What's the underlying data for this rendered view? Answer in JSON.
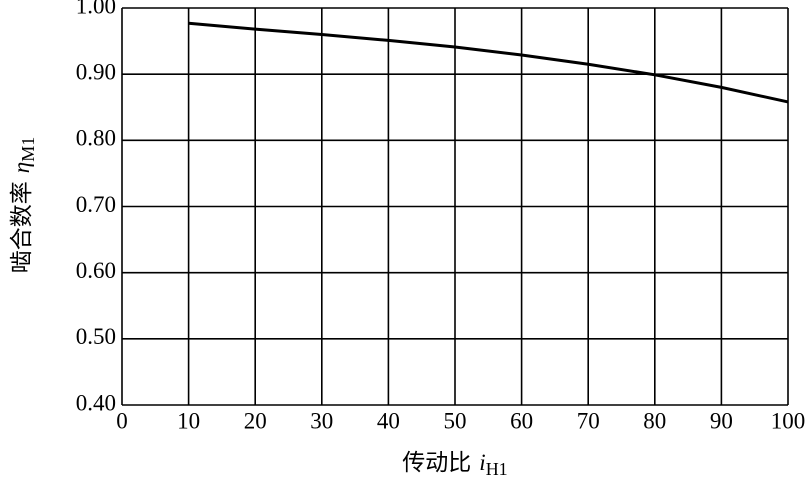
{
  "chart_data": {
    "type": "line",
    "x_label": "传动比",
    "x_symbol": "i",
    "x_symbol_sub": "H1",
    "y_label": "啮合数率",
    "y_symbol": "η",
    "y_symbol_sub": "M1",
    "x": [
      10,
      20,
      30,
      40,
      50,
      60,
      70,
      80,
      90,
      100
    ],
    "values": [
      0.977,
      0.968,
      0.96,
      0.951,
      0.941,
      0.929,
      0.915,
      0.899,
      0.88,
      0.858
    ],
    "color": "#000000",
    "xlim": [
      0,
      100
    ],
    "xticks": [
      0,
      10,
      20,
      30,
      40,
      50,
      60,
      70,
      80,
      90,
      100
    ],
    "ylim": [
      0.4,
      1.0
    ],
    "yticks": [
      {
        "value": 0.4,
        "label": "0.40"
      },
      {
        "value": 0.5,
        "label": "0.50"
      },
      {
        "value": 0.6,
        "label": "0.60"
      },
      {
        "value": 0.7,
        "label": "0.70"
      },
      {
        "value": 0.8,
        "label": "0.80"
      },
      {
        "value": 0.9,
        "label": "0.90"
      },
      {
        "value": 1.0,
        "label": "1.00"
      }
    ],
    "grid": true
  }
}
